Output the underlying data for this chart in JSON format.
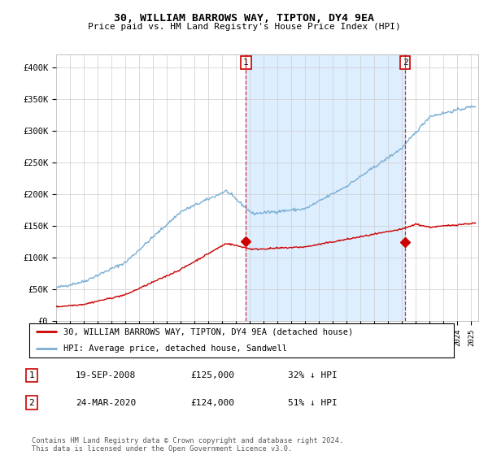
{
  "title": "30, WILLIAM BARROWS WAY, TIPTON, DY4 9EA",
  "subtitle": "Price paid vs. HM Land Registry's House Price Index (HPI)",
  "hpi_color": "#7bafd4",
  "price_color": "#cc0000",
  "background": "#ffffff",
  "grid_color": "#cccccc",
  "shade_color": "#ddeeff",
  "ylim": [
    0,
    420000
  ],
  "yticks": [
    0,
    50000,
    100000,
    150000,
    200000,
    250000,
    300000,
    350000,
    400000
  ],
  "legend_entries": [
    "30, WILLIAM BARROWS WAY, TIPTON, DY4 9EA (detached house)",
    "HPI: Average price, detached house, Sandwell"
  ],
  "sale1": {
    "date_label": "1",
    "date": "19-SEP-2008",
    "price": 125000,
    "pct": "32% ↓ HPI",
    "x_year": 2008.72
  },
  "sale2": {
    "date_label": "2",
    "date": "24-MAR-2020",
    "price": 124000,
    "pct": "51% ↓ HPI",
    "x_year": 2020.22
  },
  "footnote": "Contains HM Land Registry data © Crown copyright and database right 2024.\nThis data is licensed under the Open Government Licence v3.0.",
  "xmin": 1995,
  "xmax": 2025.5
}
